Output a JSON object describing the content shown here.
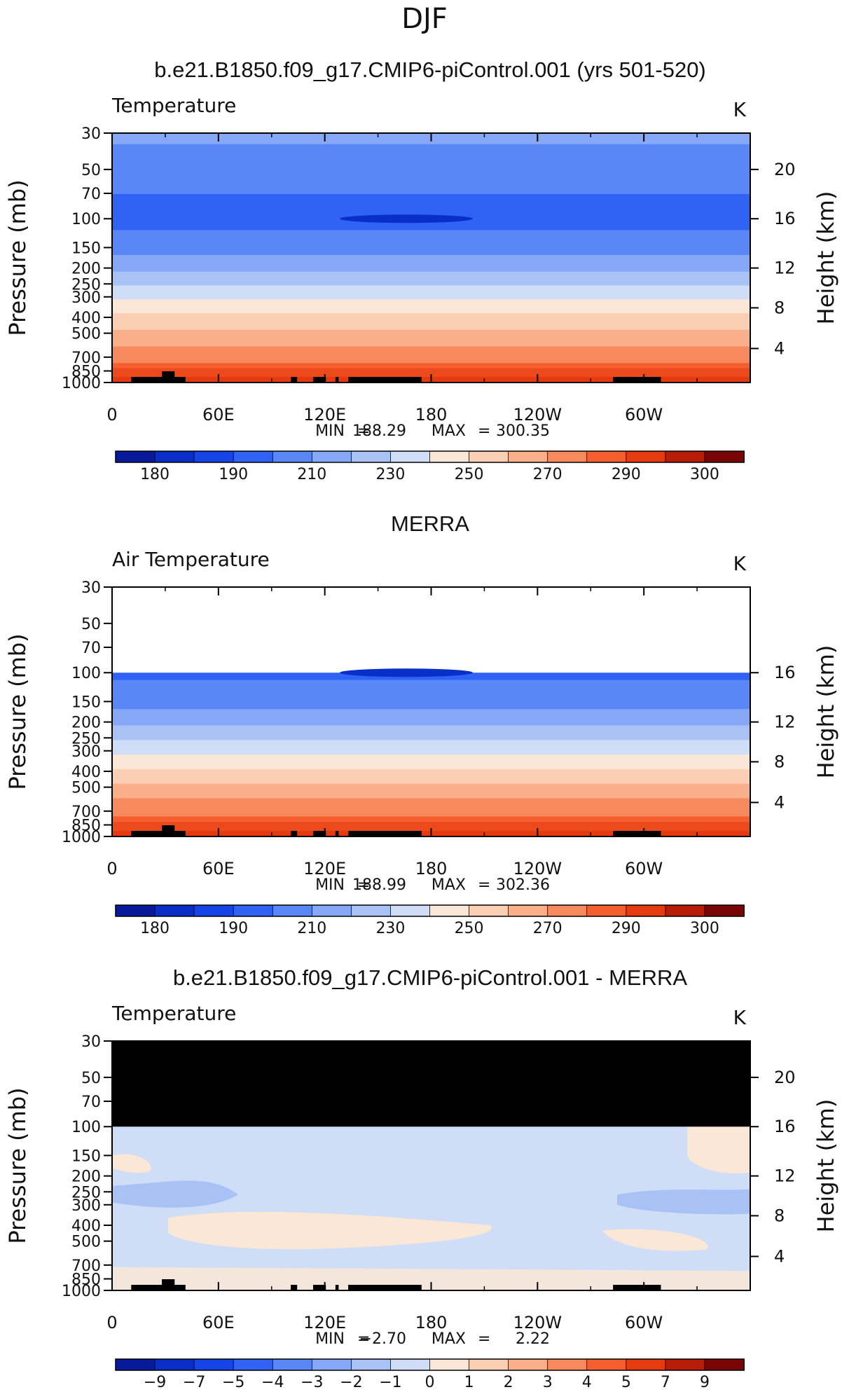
{
  "page": {
    "season": "DJF"
  },
  "colors": {
    "temp_scale": [
      "#081a9a",
      "#0a2fc8",
      "#1545e6",
      "#2f62f5",
      "#5a87f7",
      "#86a8f6",
      "#a9c2f6",
      "#cfddf7",
      "#fbe7d6",
      "#fbcfb3",
      "#f9b08a",
      "#f7895e",
      "#f55e2e",
      "#e63b0f",
      "#b81d08",
      "#7a0506"
    ],
    "diff_scale": [
      "#081a9a",
      "#0a2fc8",
      "#1545e6",
      "#2f62f5",
      "#5a87f7",
      "#86a8f6",
      "#a9c2f6",
      "#cfddf7",
      "#fbe7d6",
      "#fbcfb3",
      "#f9b08a",
      "#f7895e",
      "#f55e2e",
      "#e63b0f",
      "#b81d08",
      "#7a0506"
    ],
    "mask": "#000000"
  },
  "panels": [
    {
      "id": "model",
      "title": "b.e21.B1850.f09_g17.CMIP6-piControl.001 (yrs 501-520)",
      "left_label": "Temperature",
      "units": "K",
      "ylabel": "Pressure (mb)",
      "ylabel_right": "Height (km)",
      "stats": {
        "min_label": "MIN",
        "min_value": "188.29",
        "max_label": "MAX",
        "max_value": "300.35"
      },
      "colorbar_labels": [
        "180",
        "190",
        "210",
        "230",
        "250",
        "270",
        "290",
        "300"
      ]
    },
    {
      "id": "obs",
      "title": "MERRA",
      "left_label": "Air Temperature",
      "units": "K",
      "ylabel": "Pressure (mb)",
      "ylabel_right": "Height (km)",
      "stats": {
        "min_label": "MIN",
        "min_value": "188.99",
        "max_label": "MAX",
        "max_value": "302.36"
      },
      "colorbar_labels": [
        "180",
        "190",
        "210",
        "230",
        "250",
        "270",
        "290",
        "300"
      ]
    },
    {
      "id": "diff",
      "title": "b.e21.B1850.f09_g17.CMIP6-piControl.001 - MERRA",
      "left_label": "Temperature",
      "units": "K",
      "ylabel": "Pressure (mb)",
      "ylabel_right": "Height (km)",
      "stats": {
        "min_label": "MIN",
        "min_value": "−2.70",
        "max_label": "MAX",
        "max_value": "2.22"
      },
      "colorbar_labels": [
        "−9",
        "−7",
        "−5",
        "−4",
        "−3",
        "−2",
        "−1",
        "0",
        "1",
        "2",
        "3",
        "4",
        "5",
        "7",
        "9"
      ]
    }
  ],
  "chart_data": [
    {
      "type": "heatmap",
      "title": "b.e21.B1850.f09_g17.CMIP6-piControl.001 (yrs 501-520)",
      "subtitle": "Temperature",
      "units": "K",
      "xlabel": "",
      "ylabel": "Pressure (mb)",
      "y2label": "Height (km)",
      "x_ticks": [
        "0",
        "60E",
        "120E",
        "180",
        "120W",
        "60W"
      ],
      "y_ticks": [
        "30",
        "50",
        "70",
        "100",
        "150",
        "200",
        "250",
        "300",
        "400",
        "500",
        "700",
        "850",
        "1000"
      ],
      "y2_ticks": [
        "20",
        "16",
        "12",
        "8",
        "4"
      ],
      "ylim": [
        1000,
        30
      ],
      "y_scale": "log",
      "profile": {
        "pressure": [
          30,
          50,
          70,
          100,
          150,
          200,
          250,
          300,
          400,
          500,
          700,
          850,
          1000
        ],
        "temperature": [
          212,
          206,
          200,
          197,
          205,
          217,
          228,
          238,
          252,
          263,
          277,
          285,
          293
        ]
      },
      "min": 188.29,
      "max": 300.35,
      "levels": [
        180,
        185,
        190,
        200,
        210,
        220,
        230,
        240,
        250,
        260,
        270,
        280,
        290,
        295,
        300
      ]
    },
    {
      "type": "heatmap",
      "title": "MERRA",
      "subtitle": "Air Temperature",
      "units": "K",
      "xlabel": "",
      "ylabel": "Pressure (mb)",
      "y2label": "Height (km)",
      "x_ticks": [
        "0",
        "60E",
        "120E",
        "180",
        "120W",
        "60W"
      ],
      "y_ticks": [
        "30",
        "50",
        "70",
        "100",
        "150",
        "200",
        "250",
        "300",
        "400",
        "500",
        "700",
        "850",
        "1000"
      ],
      "y2_ticks": [
        "16",
        "12",
        "8",
        "4"
      ],
      "ylim": [
        1000,
        30
      ],
      "y_scale": "log",
      "profile": {
        "pressure": [
          100,
          150,
          200,
          250,
          300,
          400,
          500,
          700,
          850,
          1000
        ],
        "temperature": [
          198,
          206,
          217,
          228,
          238,
          252,
          263,
          277,
          285,
          294
        ]
      },
      "min": 188.99,
      "max": 302.36,
      "levels": [
        180,
        185,
        190,
        200,
        210,
        220,
        230,
        240,
        250,
        260,
        270,
        280,
        290,
        295,
        300
      ]
    },
    {
      "type": "heatmap",
      "title": "b.e21.B1850.f09_g17.CMIP6-piControl.001 - MERRA",
      "subtitle": "Temperature",
      "units": "K",
      "xlabel": "",
      "ylabel": "Pressure (mb)",
      "y2label": "Height (km)",
      "x_ticks": [
        "0",
        "60E",
        "120E",
        "180",
        "120W",
        "60W"
      ],
      "y_ticks": [
        "30",
        "50",
        "70",
        "100",
        "150",
        "200",
        "250",
        "300",
        "400",
        "500",
        "700",
        "850",
        "1000"
      ],
      "y2_ticks": [
        "20",
        "16",
        "12",
        "8",
        "4"
      ],
      "ylim": [
        1000,
        30
      ],
      "y_scale": "log",
      "min": -2.7,
      "max": 2.22,
      "levels": [
        -9,
        -7,
        -5,
        -4,
        -3,
        -2,
        -1,
        0,
        1,
        2,
        3,
        4,
        5,
        7,
        9
      ]
    }
  ]
}
